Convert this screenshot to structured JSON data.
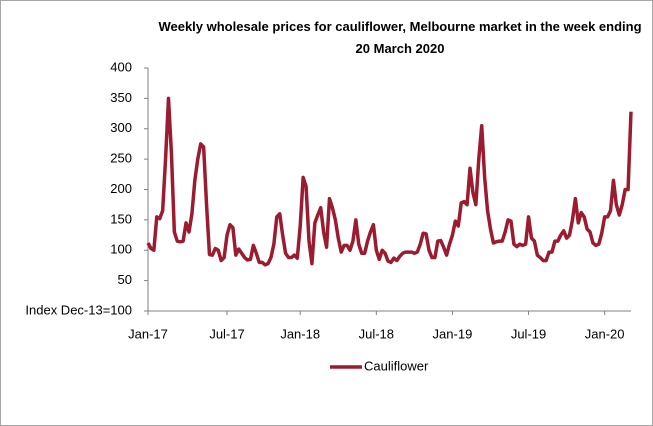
{
  "chart_data": {
    "type": "line",
    "title": "Weekly wholesale prices for cauliflower, Melbourne market in the week ending 20 March 2020",
    "categories": [
      "Jan-17",
      null,
      null,
      null,
      null,
      null,
      null,
      null,
      null,
      null,
      null,
      null,
      null,
      null,
      null,
      null,
      null,
      null,
      null,
      null,
      null,
      null,
      null,
      null,
      null,
      null,
      null,
      "Jul-17",
      null,
      null,
      null,
      null,
      null,
      null,
      null,
      null,
      null,
      null,
      null,
      null,
      null,
      null,
      null,
      null,
      null,
      null,
      null,
      null,
      null,
      null,
      null,
      null,
      "Jan-18",
      null,
      null,
      null,
      null,
      null,
      null,
      null,
      null,
      null,
      null,
      null,
      null,
      null,
      null,
      null,
      null,
      null,
      null,
      null,
      null,
      null,
      null,
      null,
      null,
      null,
      "Jul-18",
      null,
      null,
      null,
      null,
      null,
      null,
      null,
      null,
      null,
      null,
      null,
      null,
      null,
      null,
      null,
      null,
      null,
      null,
      null,
      null,
      null,
      null,
      null,
      null,
      null,
      "Jan-19",
      null,
      null,
      null,
      null,
      null,
      null,
      null,
      null,
      null,
      null,
      null,
      null,
      null,
      null,
      null,
      null,
      null,
      null,
      null,
      null,
      null,
      null,
      null,
      null,
      null,
      "Jul-19",
      null,
      null,
      null,
      null,
      null,
      null,
      null,
      null,
      null,
      null,
      null,
      null,
      null,
      null,
      null,
      null,
      null,
      null,
      null,
      null,
      null,
      null,
      null,
      null,
      null,
      "Jan-20",
      null,
      null,
      null,
      null,
      null,
      null,
      null,
      null,
      null
    ],
    "series": [
      {
        "name": "Cauliflower",
        "color": "#9b1b30",
        "values": [
          112,
          103,
          100,
          155,
          152,
          165,
          250,
          350,
          260,
          130,
          115,
          114,
          115,
          145,
          130,
          160,
          215,
          250,
          275,
          270,
          175,
          93,
          92,
          103,
          100,
          83,
          88,
          125,
          142,
          137,
          92,
          102,
          95,
          88,
          84,
          85,
          108,
          95,
          80,
          80,
          76,
          78,
          88,
          110,
          155,
          160,
          125,
          95,
          88,
          88,
          92,
          87,
          140,
          220,
          205,
          115,
          78,
          145,
          158,
          170,
          130,
          105,
          185,
          170,
          150,
          120,
          97,
          108,
          108,
          100,
          115,
          150,
          110,
          95,
          95,
          115,
          130,
          142,
          100,
          85,
          100,
          95,
          82,
          80,
          87,
          83,
          90,
          95,
          97,
          97,
          97,
          95,
          97,
          110,
          128,
          127,
          100,
          88,
          88,
          115,
          116,
          105,
          92,
          110,
          125,
          148,
          140,
          178,
          180,
          175,
          235,
          195,
          175,
          250,
          305,
          220,
          165,
          135,
          112,
          114,
          115,
          115,
          130,
          150,
          148,
          110,
          106,
          110,
          108,
          110,
          155,
          120,
          115,
          92,
          88,
          83,
          83,
          97,
          97,
          115,
          115,
          125,
          132,
          120,
          125,
          150,
          185,
          145,
          162,
          155,
          135,
          130,
          112,
          108,
          110,
          128,
          155,
          155,
          165,
          215,
          175,
          158,
          175,
          200,
          200,
          328
        ]
      }
    ],
    "ylim": [
      0,
      400
    ],
    "yticks": [
      {
        "value": 0,
        "label": "Index Dec-13=100"
      },
      50,
      100,
      150,
      200,
      250,
      300,
      350,
      400
    ],
    "grid": false,
    "legend": "bottom"
  }
}
